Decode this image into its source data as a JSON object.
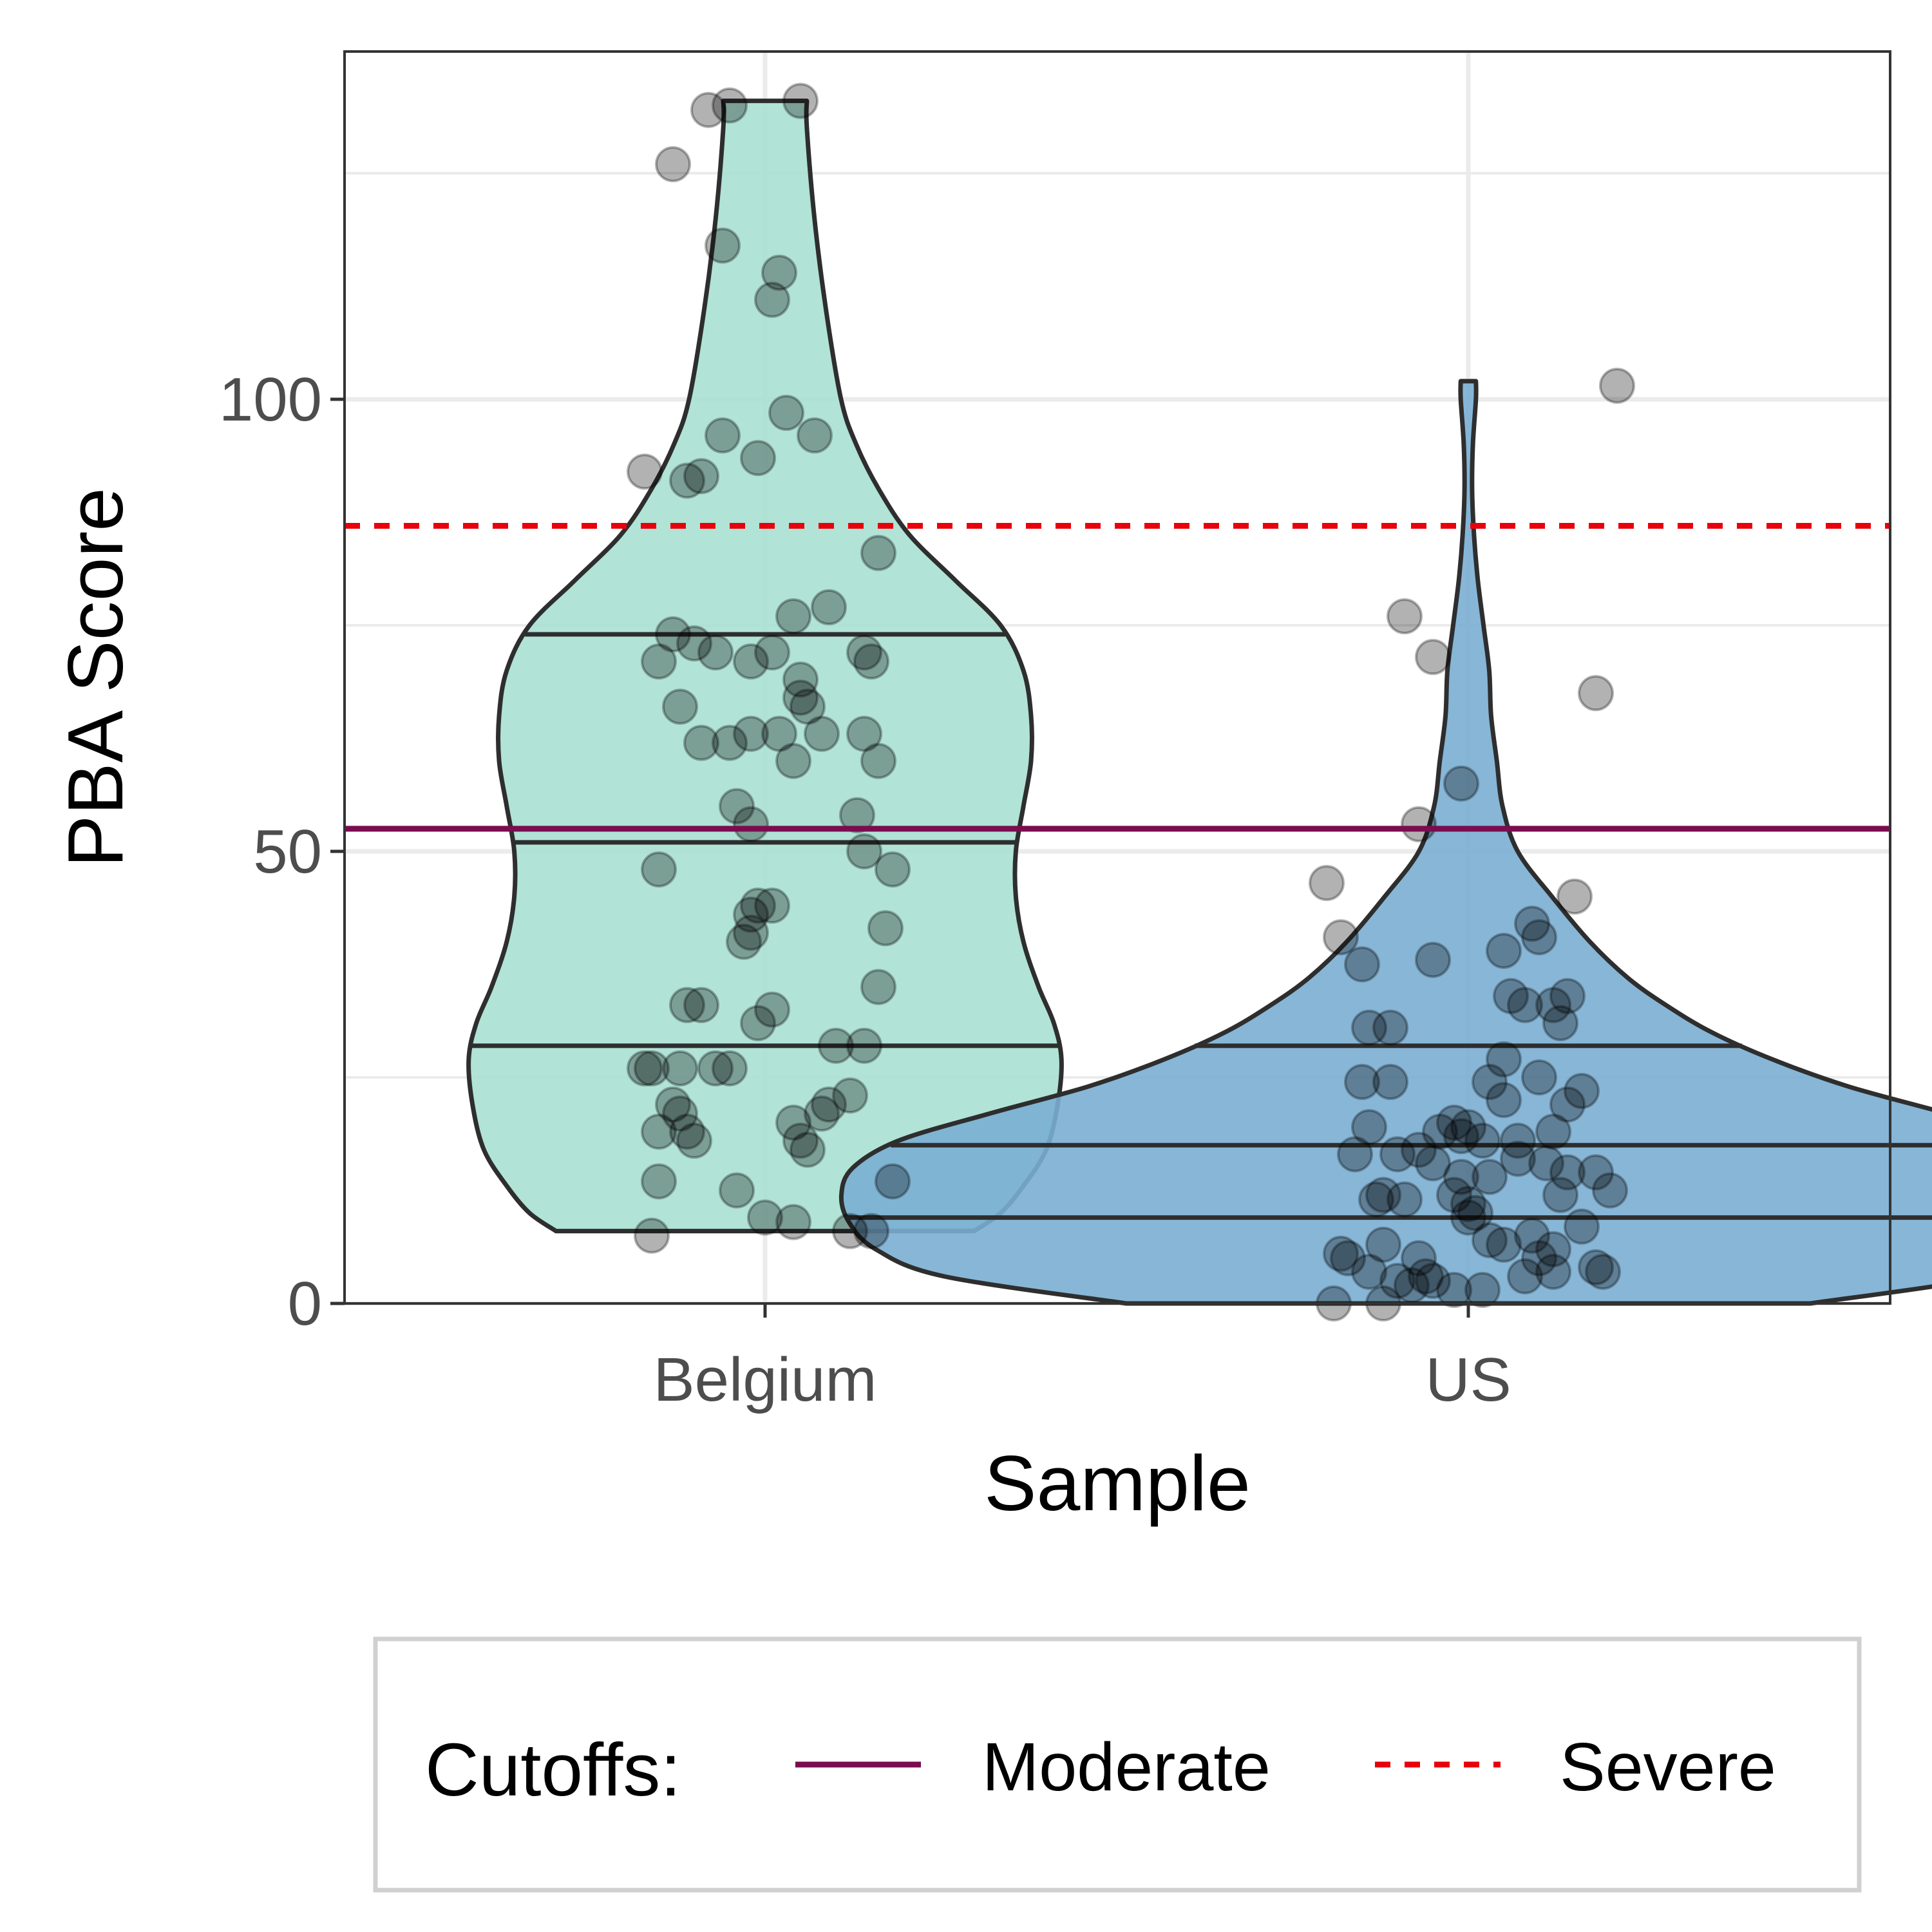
{
  "chart_data": {
    "type": "violin",
    "xlabel": "Sample",
    "ylabel": "PBA Score",
    "categories": [
      "Belgium",
      "US"
    ],
    "ylim": [
      0,
      137
    ],
    "yticks": [
      0,
      50,
      100
    ],
    "grid": true,
    "legend_position": "bottom",
    "legend": {
      "title": "Cutoffs:",
      "entries": [
        {
          "label": "Moderate",
          "linetype": "solid",
          "color": "#7B0C4F"
        },
        {
          "label": "Severe",
          "linetype": "dashed",
          "color": "#E8000B"
        }
      ]
    },
    "reference_lines": [
      {
        "name": "Moderate",
        "y": 52.5,
        "linetype": "solid",
        "color": "#7B0C4F"
      },
      {
        "name": "Severe",
        "y": 86,
        "linetype": "dashed",
        "color": "#E8000B"
      }
    ],
    "series": [
      {
        "category": "Belgium",
        "fill": "#A8E0D2",
        "min": 8,
        "max": 133,
        "quartiles": [
          28.5,
          51,
          74
        ],
        "density_profile": [
          [
            8,
            0.55
          ],
          [
            10,
            0.62
          ],
          [
            13,
            0.68
          ],
          [
            17,
            0.74
          ],
          [
            22,
            0.77
          ],
          [
            27,
            0.78
          ],
          [
            31,
            0.76
          ],
          [
            35,
            0.72
          ],
          [
            40,
            0.68
          ],
          [
            45,
            0.66
          ],
          [
            50,
            0.66
          ],
          [
            55,
            0.68
          ],
          [
            60,
            0.7
          ],
          [
            65,
            0.7
          ],
          [
            70,
            0.68
          ],
          [
            75,
            0.62
          ],
          [
            80,
            0.5
          ],
          [
            85,
            0.38
          ],
          [
            90,
            0.3
          ],
          [
            95,
            0.24
          ],
          [
            100,
            0.2
          ],
          [
            110,
            0.16
          ],
          [
            120,
            0.13
          ],
          [
            130,
            0.11
          ],
          [
            133,
            0.11
          ]
        ],
        "points": [
          [
            5,
            133
          ],
          [
            -8,
            132
          ],
          [
            -5,
            132.5
          ],
          [
            -13,
            126
          ],
          [
            -6,
            117
          ],
          [
            2,
            114
          ],
          [
            1,
            111
          ],
          [
            3,
            98.5
          ],
          [
            -6,
            96
          ],
          [
            -17,
            92
          ],
          [
            -11,
            91
          ],
          [
            -9,
            91.5
          ],
          [
            -1,
            93.5
          ],
          [
            7,
            96
          ],
          [
            16,
            83
          ],
          [
            -15,
            71
          ],
          [
            -13,
            74
          ],
          [
            -10,
            73
          ],
          [
            -7,
            72
          ],
          [
            -2,
            71
          ],
          [
            1,
            72
          ],
          [
            4,
            76
          ],
          [
            9,
            77
          ],
          [
            14,
            72
          ],
          [
            15,
            71
          ],
          [
            -12,
            66
          ],
          [
            -9,
            62
          ],
          [
            -5,
            62
          ],
          [
            -2,
            63
          ],
          [
            2,
            63
          ],
          [
            5,
            69
          ],
          [
            5,
            67
          ],
          [
            6,
            66
          ],
          [
            8,
            63
          ],
          [
            4,
            60
          ],
          [
            -4,
            55
          ],
          [
            -2,
            53
          ],
          [
            14,
            63
          ],
          [
            16,
            60
          ],
          [
            13,
            54
          ],
          [
            14,
            50
          ],
          [
            18,
            48
          ],
          [
            -15,
            48
          ],
          [
            -1,
            44
          ],
          [
            1,
            44
          ],
          [
            -2,
            43
          ],
          [
            -2,
            41
          ],
          [
            -3,
            40
          ],
          [
            17,
            41.5
          ],
          [
            16,
            35
          ],
          [
            -11,
            33
          ],
          [
            -9,
            33
          ],
          [
            -1,
            31
          ],
          [
            1,
            32.5
          ],
          [
            -17,
            26
          ],
          [
            -16,
            26
          ],
          [
            -12,
            26
          ],
          [
            -7,
            26
          ],
          [
            -5,
            26
          ],
          [
            -13,
            22
          ],
          [
            -12,
            21
          ],
          [
            -15,
            19
          ],
          [
            -11,
            19
          ],
          [
            -10,
            18
          ],
          [
            4,
            20
          ],
          [
            5,
            18
          ],
          [
            6,
            17
          ],
          [
            8,
            21
          ],
          [
            9,
            22
          ],
          [
            12,
            23
          ],
          [
            10,
            28.5
          ],
          [
            14,
            28.5
          ],
          [
            -15,
            13.5
          ],
          [
            -4,
            12.5
          ],
          [
            0,
            9.5
          ],
          [
            4,
            9
          ],
          [
            12,
            8
          ],
          [
            15,
            8
          ],
          [
            18,
            13.5
          ],
          [
            -16,
            7.5
          ]
        ]
      },
      {
        "category": "US",
        "fill": "#7AAED3",
        "min": 0,
        "max": 102,
        "quartiles": [
          9.5,
          17.5,
          28.5
        ],
        "density_profile": [
          [
            0,
            0.9
          ],
          [
            3,
            1.38
          ],
          [
            6,
            1.56
          ],
          [
            9,
            1.63
          ],
          [
            12,
            1.65
          ],
          [
            15,
            1.62
          ],
          [
            18,
            1.5
          ],
          [
            21,
            1.26
          ],
          [
            24,
            1.0
          ],
          [
            27,
            0.8
          ],
          [
            30,
            0.64
          ],
          [
            33,
            0.52
          ],
          [
            36,
            0.42
          ],
          [
            40,
            0.32
          ],
          [
            45,
            0.22
          ],
          [
            50,
            0.13
          ],
          [
            55,
            0.09
          ],
          [
            60,
            0.075
          ],
          [
            65,
            0.06
          ],
          [
            70,
            0.055
          ],
          [
            75,
            0.04
          ],
          [
            80,
            0.025
          ],
          [
            85,
            0.015
          ],
          [
            90,
            0.01
          ],
          [
            95,
            0.012
          ],
          [
            100,
            0.02
          ],
          [
            102,
            0.02
          ]
        ],
        "points": [
          [
            21,
            101.5
          ],
          [
            -9,
            76
          ],
          [
            -5,
            71.5
          ],
          [
            18,
            67.5
          ],
          [
            -1,
            57.5
          ],
          [
            -7,
            53
          ],
          [
            -20,
            46.5
          ],
          [
            15,
            45
          ],
          [
            -18,
            40.5
          ],
          [
            -15,
            37.5
          ],
          [
            -5,
            38
          ],
          [
            5,
            39
          ],
          [
            9,
            42
          ],
          [
            10,
            40.5
          ],
          [
            -14,
            30.5
          ],
          [
            -11,
            30.5
          ],
          [
            6,
            34
          ],
          [
            8,
            33
          ],
          [
            12,
            33
          ],
          [
            14,
            34
          ],
          [
            13,
            31
          ],
          [
            -15,
            24.5
          ],
          [
            -11,
            24.5
          ],
          [
            3,
            24.5
          ],
          [
            5,
            27
          ],
          [
            10,
            25
          ],
          [
            -2,
            20
          ],
          [
            0,
            19.5
          ],
          [
            5,
            22.5
          ],
          [
            14,
            22
          ],
          [
            16,
            23.5
          ],
          [
            -14,
            19.5
          ],
          [
            -4,
            19
          ],
          [
            -1,
            18.5
          ],
          [
            2,
            18
          ],
          [
            7,
            18
          ],
          [
            12,
            19
          ],
          [
            -16,
            16.5
          ],
          [
            -10,
            16.5
          ],
          [
            -7,
            17
          ],
          [
            -5,
            15.5
          ],
          [
            -1,
            14
          ],
          [
            3,
            14
          ],
          [
            7,
            16
          ],
          [
            11,
            15.5
          ],
          [
            14,
            14.5
          ],
          [
            18,
            14.5
          ],
          [
            -13,
            11.5
          ],
          [
            -12,
            12
          ],
          [
            -9,
            11.5
          ],
          [
            -2,
            12
          ],
          [
            0,
            11
          ],
          [
            0,
            9.5
          ],
          [
            1,
            10
          ],
          [
            13,
            12
          ],
          [
            20,
            12.5
          ],
          [
            -12,
            6.5
          ],
          [
            -18,
            5.5
          ],
          [
            -17,
            5
          ],
          [
            -7,
            5
          ],
          [
            3,
            7
          ],
          [
            5,
            6.5
          ],
          [
            9,
            7.5
          ],
          [
            10,
            5
          ],
          [
            12,
            6
          ],
          [
            16,
            8.5
          ],
          [
            19,
            3.5
          ],
          [
            -14,
            3.5
          ],
          [
            -10,
            2.5
          ],
          [
            -8,
            2
          ],
          [
            -6,
            3
          ],
          [
            -5,
            2.5
          ],
          [
            -2,
            1.5
          ],
          [
            2,
            1.5
          ],
          [
            8,
            3
          ],
          [
            12,
            3.5
          ],
          [
            18,
            4
          ],
          [
            -19,
            0
          ],
          [
            -12,
            0
          ]
        ]
      }
    ]
  }
}
